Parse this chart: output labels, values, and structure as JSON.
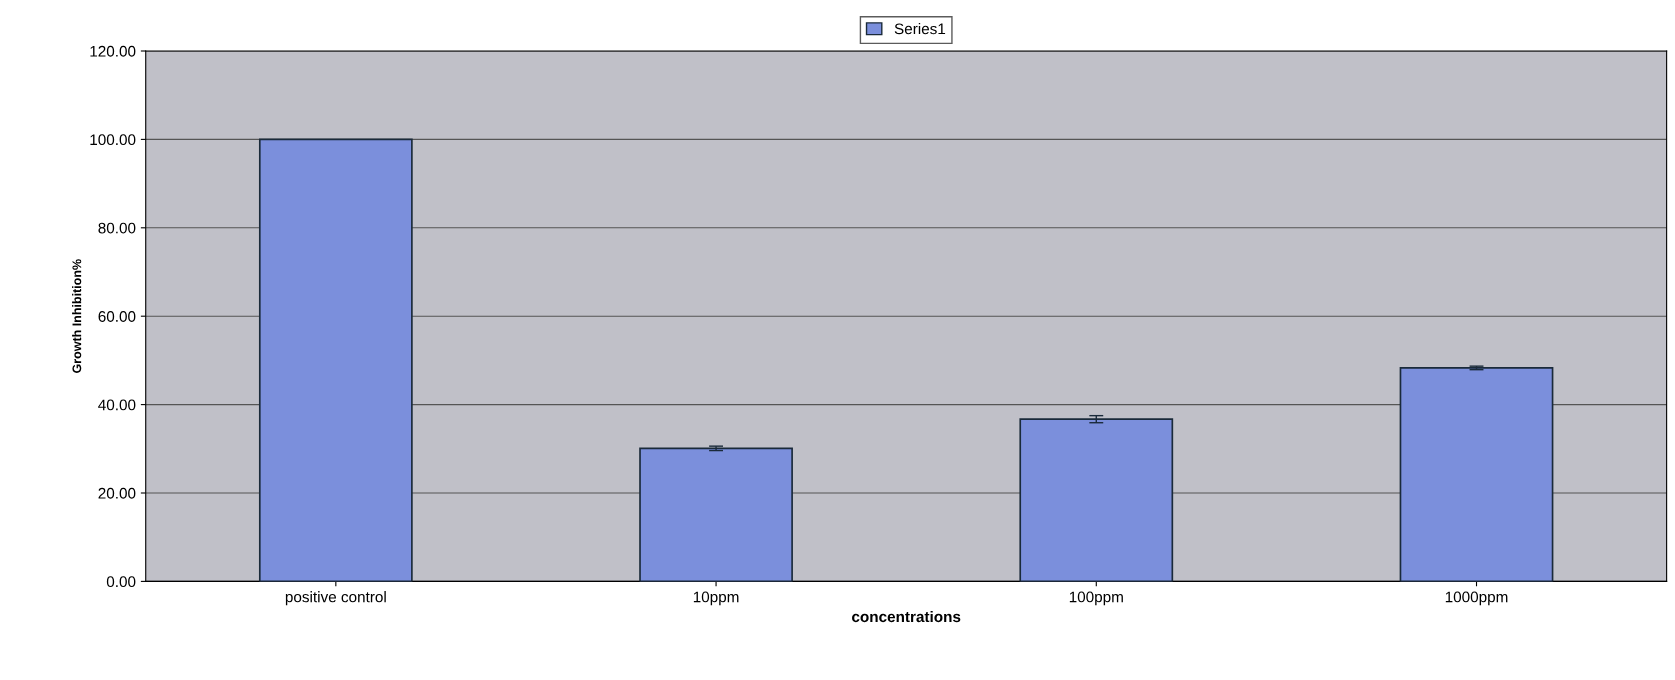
{
  "chart_data": {
    "type": "bar",
    "xlabel": "concentrations",
    "ylabel": "Growth Inhibition%",
    "categories": [
      "positive control",
      "10ppm",
      "100ppm",
      "1000ppm"
    ],
    "series": [
      {
        "name": "Series1",
        "color": "#7b8fdc",
        "values": [
          100.0,
          30.1,
          36.7,
          48.3
        ],
        "errors": [
          null,
          0.5,
          0.8,
          0.4
        ]
      }
    ],
    "ylim": [
      0,
      120
    ],
    "yticks": [
      {
        "value": 0,
        "label": "0.00"
      },
      {
        "value": 20,
        "label": "20.00"
      },
      {
        "value": 40,
        "label": "40.00"
      },
      {
        "value": 60,
        "label": "60.00"
      },
      {
        "value": 80,
        "label": "80.00"
      },
      {
        "value": 100,
        "label": "100.00"
      },
      {
        "value": 120,
        "label": "120.00"
      }
    ],
    "grid": "y",
    "legend": "top"
  }
}
